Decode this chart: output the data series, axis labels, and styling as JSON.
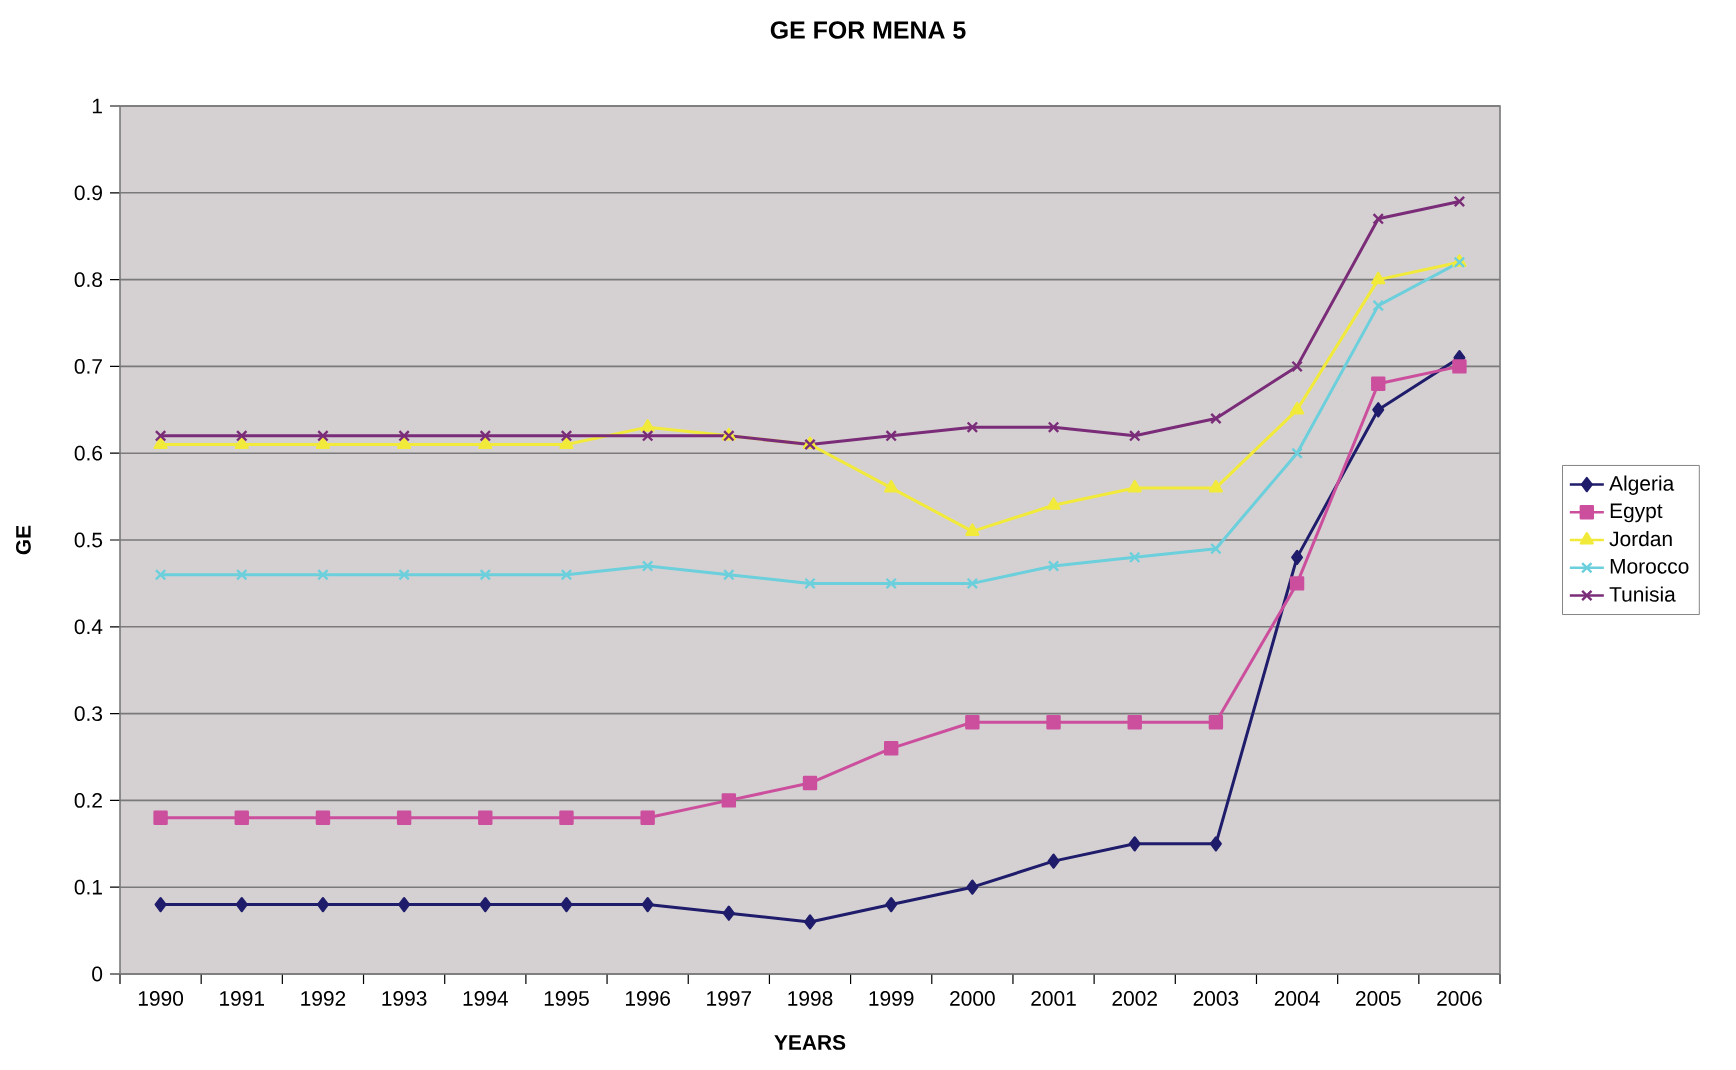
{
  "chart_data": {
    "type": "line",
    "title": "GE FOR MENA 5",
    "xlabel": "YEARS",
    "ylabel": "GE",
    "categories": [
      "1990",
      "1991",
      "1992",
      "1993",
      "1994",
      "1995",
      "1996",
      "1997",
      "1998",
      "1999",
      "2000",
      "2001",
      "2002",
      "2003",
      "2004",
      "2005",
      "2006"
    ],
    "ylim": [
      0,
      1
    ],
    "yticks": [
      0,
      0.1,
      0.2,
      0.3,
      0.4,
      0.5,
      0.6,
      0.7,
      0.8,
      0.9,
      1
    ],
    "grid": "y",
    "legend": "right",
    "series": [
      {
        "name": "Algeria",
        "color": "#1f1c6b",
        "marker": "diamond",
        "values": [
          0.08,
          0.08,
          0.08,
          0.08,
          0.08,
          0.08,
          0.08,
          0.07,
          0.06,
          0.08,
          0.1,
          0.13,
          0.15,
          0.15,
          0.48,
          0.65,
          0.71
        ]
      },
      {
        "name": "Egypt",
        "color": "#cc4f9e",
        "marker": "square",
        "values": [
          0.18,
          0.18,
          0.18,
          0.18,
          0.18,
          0.18,
          0.18,
          0.2,
          0.22,
          0.26,
          0.29,
          0.29,
          0.29,
          0.29,
          0.45,
          0.68,
          0.7
        ]
      },
      {
        "name": "Jordan",
        "color": "#f2ea3a",
        "marker": "triangle",
        "values": [
          0.61,
          0.61,
          0.61,
          0.61,
          0.61,
          0.61,
          0.63,
          0.62,
          0.61,
          0.56,
          0.51,
          0.54,
          0.56,
          0.56,
          0.65,
          0.8,
          0.82
        ]
      },
      {
        "name": "Morocco",
        "color": "#6ccfdc",
        "marker": "cross",
        "values": [
          0.46,
          0.46,
          0.46,
          0.46,
          0.46,
          0.46,
          0.47,
          0.46,
          0.45,
          0.45,
          0.45,
          0.47,
          0.48,
          0.49,
          0.6,
          0.77,
          0.82
        ]
      },
      {
        "name": "Tunisia",
        "color": "#7a2c78",
        "marker": "cross",
        "values": [
          0.62,
          0.62,
          0.62,
          0.62,
          0.62,
          0.62,
          0.62,
          0.62,
          0.61,
          0.62,
          0.63,
          0.63,
          0.62,
          0.64,
          0.7,
          0.87,
          0.89
        ]
      }
    ]
  }
}
